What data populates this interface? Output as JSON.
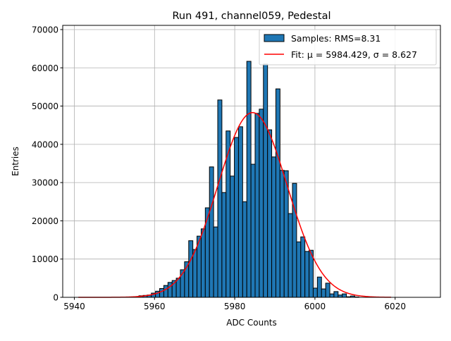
{
  "chart_data": {
    "type": "bar",
    "title": "Run 491, channel059, Pedestal",
    "xlabel": "ADC Counts",
    "ylabel": "Entries",
    "xlim": [
      5937.1,
      6031.3
    ],
    "ylim": [
      0,
      71100
    ],
    "xticks": [
      5940,
      5960,
      5980,
      6000,
      6020
    ],
    "yticks": [
      0,
      10000,
      20000,
      30000,
      40000,
      50000,
      60000,
      70000
    ],
    "grid": true,
    "legend_position": "top-right",
    "histogram": {
      "name": "Samples: RMS=8.31",
      "bin_start": 5956.1,
      "bin_width": 1.035,
      "values": [
        400,
        500,
        600,
        1100,
        1600,
        2300,
        3100,
        3900,
        4400,
        5000,
        7200,
        9300,
        14800,
        12500,
        16000,
        17900,
        23400,
        34100,
        18400,
        51600,
        27400,
        43500,
        31700,
        41800,
        44600,
        25000,
        61700,
        34800,
        48100,
        49200,
        61000,
        43800,
        36700,
        54500,
        33200,
        33100,
        21900,
        29800,
        14500,
        15800,
        12000,
        12300,
        2400,
        5300,
        2200,
        3700,
        900,
        1500,
        600,
        900,
        150,
        350,
        100
      ],
      "color": "#1f77b4",
      "edge_color": "#000000"
    },
    "fit": {
      "name": "Fit: μ = 5984.429, σ = 8.627",
      "mu": 5984.429,
      "sigma": 8.627,
      "amplitude": 48300,
      "x_range": [
        5941,
        6019
      ],
      "color": "#ff0000"
    }
  }
}
